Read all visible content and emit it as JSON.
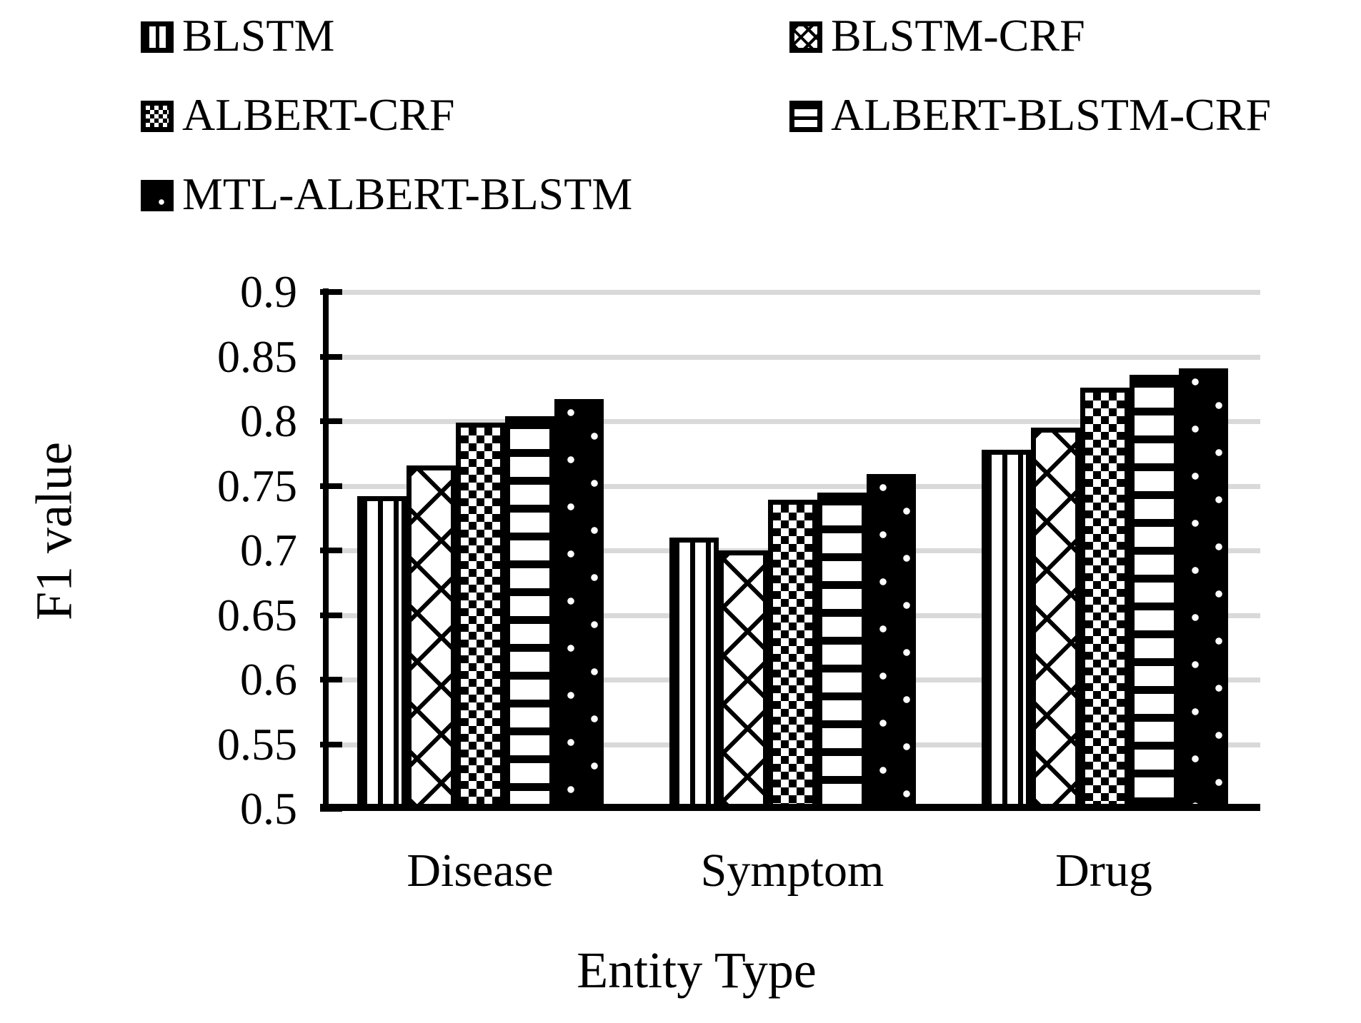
{
  "legend": {
    "items": [
      {
        "label": "BLSTM",
        "pattern": "vertical-stripes"
      },
      {
        "label": "BLSTM-CRF",
        "pattern": "diagonal-diamond"
      },
      {
        "label": "ALBERT-CRF",
        "pattern": "checkerboard"
      },
      {
        "label": "ALBERT-BLSTM-CRF",
        "pattern": "horizontal-stripes"
      },
      {
        "label": "MTL-ALBERT-BLSTM",
        "pattern": "solid-black-dots"
      }
    ]
  },
  "axes": {
    "y_label": "F1 value",
    "x_label": "Entity Type",
    "y_ticks": [
      "0.9",
      "0.85",
      "0.8",
      "0.75",
      "0.7",
      "0.65",
      "0.6",
      "0.55",
      "0.5"
    ]
  },
  "chart_data": {
    "type": "bar",
    "title": "",
    "categories": [
      "Disease",
      "Symptom",
      "Drug"
    ],
    "series": [
      {
        "name": "BLSTM",
        "pattern": "vertical-stripes",
        "values": [
          0.742,
          0.71,
          0.778
        ]
      },
      {
        "name": "BLSTM-CRF",
        "pattern": "diagonal-diamond",
        "values": [
          0.766,
          0.7,
          0.795
        ]
      },
      {
        "name": "ALBERT-CRF",
        "pattern": "checkerboard",
        "values": [
          0.799,
          0.739,
          0.826
        ]
      },
      {
        "name": "ALBERT-BLSTM-CRF",
        "pattern": "horizontal-stripes",
        "values": [
          0.804,
          0.745,
          0.836
        ]
      },
      {
        "name": "MTL-ALBERT-BLSTM",
        "pattern": "solid-black-dots",
        "values": [
          0.817,
          0.759,
          0.841
        ]
      }
    ],
    "xlabel": "Entity Type",
    "ylabel": "F1 value",
    "ylim": [
      0.5,
      0.9
    ],
    "ytick_step": 0.05,
    "grid": "horizontal",
    "legend_position": "top",
    "colors": {
      "bar_fill": "#000000",
      "background": "#ffffff",
      "gridline": "#d9d9d9"
    }
  }
}
